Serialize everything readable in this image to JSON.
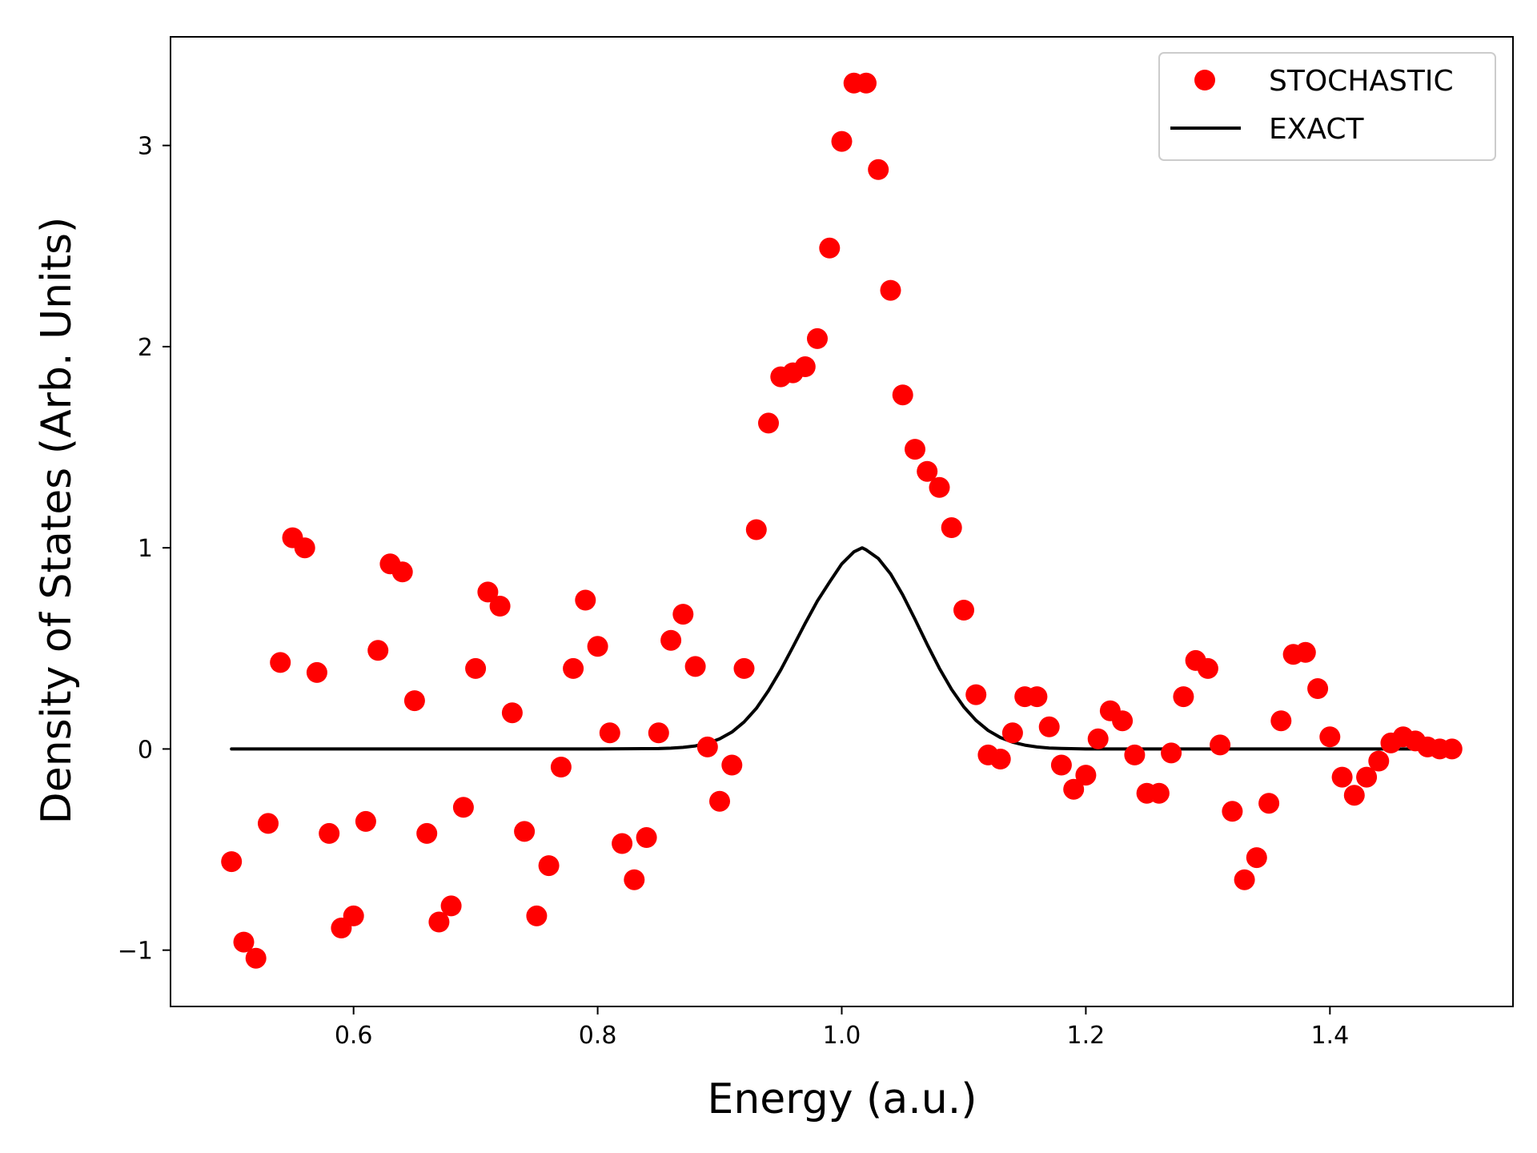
{
  "chart_data": {
    "type": "scatter",
    "title": "",
    "xlabel": "Energy (a.u.)",
    "ylabel": "Density of States (Arb. Units)",
    "xlim": [
      0.45,
      1.55
    ],
    "ylim": [
      -1.28,
      3.54
    ],
    "xticks": [
      0.6,
      0.8,
      1.0,
      1.2,
      1.4
    ],
    "xtick_labels": [
      "0.6",
      "0.8",
      "1.0",
      "1.2",
      "1.4"
    ],
    "yticks": [
      -1,
      0,
      1,
      2,
      3
    ],
    "ytick_labels": [
      "−1",
      "0",
      "1",
      "2",
      "3"
    ],
    "grid": false,
    "legend_position": "top-right",
    "series": [
      {
        "name": "STOCHASTIC",
        "type": "scatter",
        "color": "#ff0000",
        "x": [
          0.5,
          0.51,
          0.52,
          0.53,
          0.54,
          0.55,
          0.56,
          0.57,
          0.58,
          0.59,
          0.6,
          0.61,
          0.62,
          0.63,
          0.64,
          0.65,
          0.66,
          0.67,
          0.68,
          0.69,
          0.7,
          0.71,
          0.72,
          0.73,
          0.74,
          0.75,
          0.76,
          0.77,
          0.78,
          0.79,
          0.8,
          0.81,
          0.82,
          0.83,
          0.84,
          0.85,
          0.86,
          0.87,
          0.88,
          0.89,
          0.9,
          0.91,
          0.92,
          0.93,
          0.94,
          0.95,
          0.96,
          0.97,
          0.98,
          0.99,
          1.0,
          1.01,
          1.02,
          1.03,
          1.04,
          1.05,
          1.06,
          1.07,
          1.08,
          1.09,
          1.1,
          1.11,
          1.12,
          1.13,
          1.14,
          1.15,
          1.16,
          1.17,
          1.18,
          1.19,
          1.2,
          1.21,
          1.22,
          1.23,
          1.24,
          1.25,
          1.26,
          1.27,
          1.28,
          1.29,
          1.3,
          1.31,
          1.32,
          1.33,
          1.34,
          1.35,
          1.36,
          1.37,
          1.38,
          1.39,
          1.4,
          1.41,
          1.42,
          1.43,
          1.44,
          1.45,
          1.46,
          1.47,
          1.48,
          1.49,
          1.5
        ],
        "y": [
          -0.56,
          -0.96,
          -1.04,
          -0.37,
          0.43,
          1.05,
          1.0,
          0.38,
          -0.42,
          -0.89,
          -0.83,
          -0.36,
          0.49,
          0.92,
          0.88,
          0.24,
          -0.42,
          -0.86,
          -0.78,
          -0.29,
          0.4,
          0.78,
          0.71,
          0.18,
          -0.41,
          -0.83,
          -0.58,
          -0.09,
          0.4,
          0.74,
          0.51,
          0.08,
          -0.47,
          -0.65,
          -0.44,
          0.08,
          0.54,
          0.67,
          0.41,
          0.01,
          -0.26,
          -0.08,
          0.4,
          1.09,
          1.62,
          1.85,
          1.87,
          1.9,
          2.04,
          2.49,
          3.02,
          3.31,
          3.31,
          2.88,
          2.28,
          1.76,
          1.49,
          1.38,
          1.3,
          1.1,
          0.69,
          0.27,
          -0.03,
          -0.05,
          0.08,
          0.26,
          0.26,
          0.11,
          -0.08,
          -0.2,
          -0.13,
          0.05,
          0.19,
          0.14,
          -0.03,
          -0.22,
          -0.22,
          -0.02,
          0.26,
          0.44,
          0.4,
          0.02,
          -0.31,
          -0.65,
          -0.54,
          -0.27,
          0.14,
          0.47,
          0.48,
          0.3,
          0.06,
          -0.14,
          -0.23,
          -0.14,
          -0.06,
          0.03,
          0.06,
          0.04,
          0.01,
          0.0,
          0.0
        ]
      },
      {
        "name": "EXACT",
        "type": "line",
        "color": "#000000",
        "x": [
          0.5,
          0.55,
          0.6,
          0.65,
          0.7,
          0.75,
          0.8,
          0.85,
          0.86,
          0.87,
          0.88,
          0.89,
          0.9,
          0.91,
          0.92,
          0.93,
          0.94,
          0.95,
          0.96,
          0.97,
          0.98,
          0.99,
          1.0,
          1.01,
          1.0167,
          1.02,
          1.03,
          1.04,
          1.05,
          1.06,
          1.07,
          1.08,
          1.09,
          1.1,
          1.11,
          1.12,
          1.13,
          1.14,
          1.15,
          1.16,
          1.17,
          1.18,
          1.2,
          1.25,
          1.3,
          1.35,
          1.4,
          1.45,
          1.5
        ],
        "y": [
          0.0,
          0.0,
          0.0,
          0.0,
          0.0,
          0.0,
          0.0,
          0.002,
          0.004,
          0.008,
          0.015,
          0.028,
          0.05,
          0.084,
          0.134,
          0.202,
          0.29,
          0.393,
          0.507,
          0.624,
          0.735,
          0.83,
          0.92,
          0.98,
          1.0,
          0.99,
          0.947,
          0.87,
          0.766,
          0.645,
          0.52,
          0.401,
          0.296,
          0.209,
          0.142,
          0.092,
          0.057,
          0.034,
          0.019,
          0.01,
          0.005,
          0.003,
          0.0,
          0.0,
          0.0,
          0.0,
          0.0,
          0.0,
          0.0
        ]
      }
    ]
  }
}
